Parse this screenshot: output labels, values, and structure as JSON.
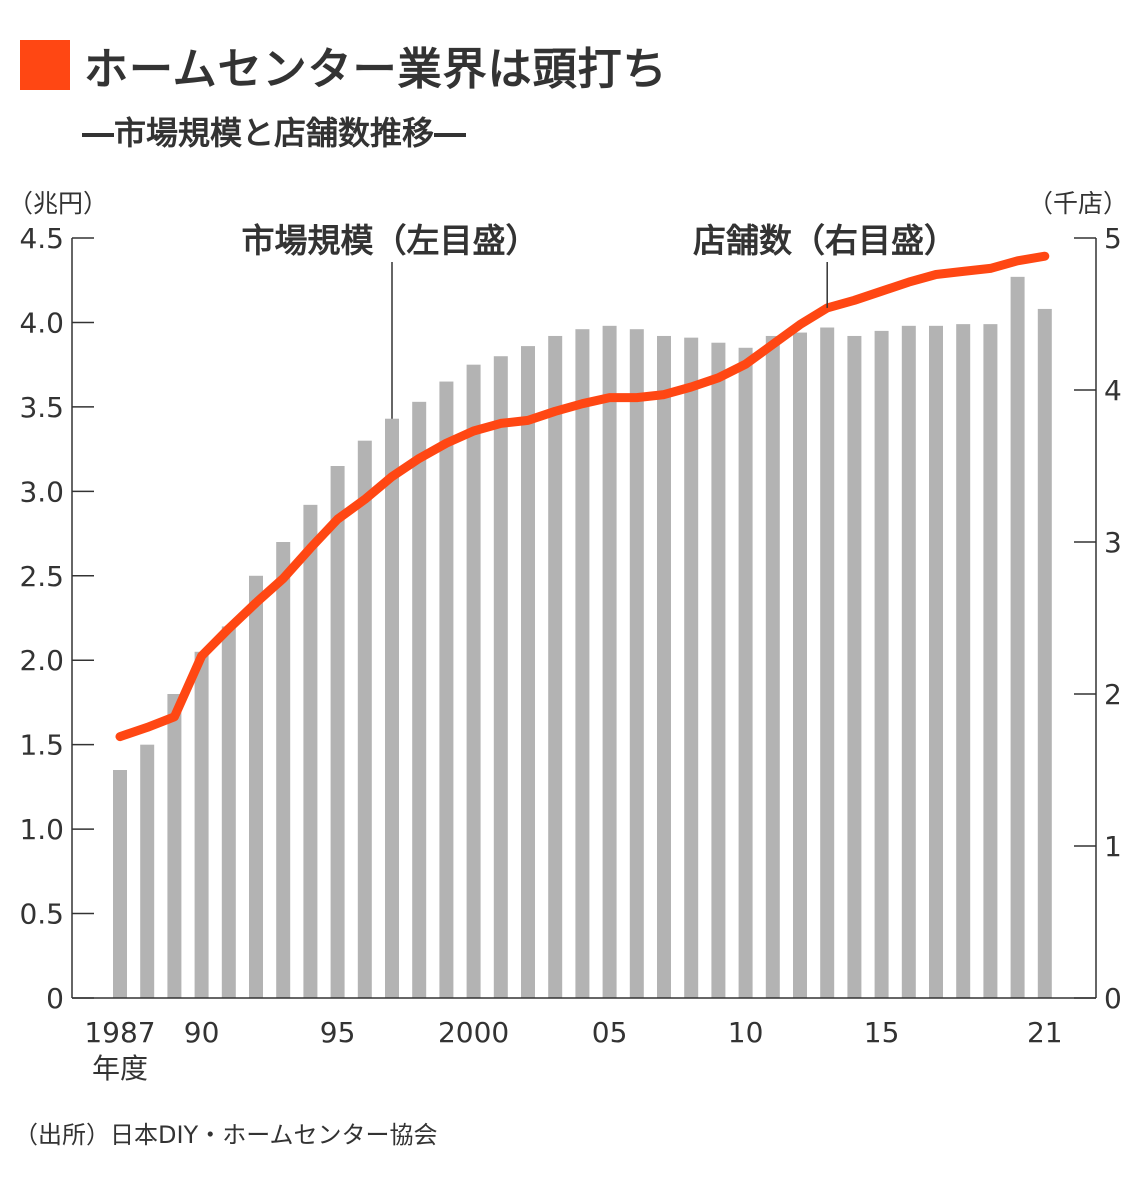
{
  "header": {
    "title": "ホームセンター業界は頭打ち",
    "subtitle": "―市場規模と店舗数推移―",
    "accent_color": "#ff4713"
  },
  "chart_data": {
    "type": "bar",
    "y_left_label": "（兆円）",
    "y_right_label": "（千店）",
    "y_left_ticks": [
      "0",
      "0.5",
      "1.0",
      "1.5",
      "2.0",
      "2.5",
      "3.0",
      "3.5",
      "4.0",
      "4.5"
    ],
    "y_right_ticks": [
      "0",
      "1",
      "2",
      "3",
      "4",
      "5"
    ],
    "ylim_left": [
      0,
      4.5
    ],
    "ylim_right": [
      0,
      5
    ],
    "x_tick_labels": [
      {
        "year": 1987,
        "label": "1987"
      },
      {
        "year": 1990,
        "label": "90"
      },
      {
        "year": 1995,
        "label": "95"
      },
      {
        "year": 2000,
        "label": "2000"
      },
      {
        "year": 2005,
        "label": "05"
      },
      {
        "year": 2010,
        "label": "10"
      },
      {
        "year": 2015,
        "label": "15"
      },
      {
        "year": 2021,
        "label": "21"
      }
    ],
    "x_unit_label": "年度",
    "categories": [
      1987,
      1988,
      1989,
      1990,
      1991,
      1992,
      1993,
      1994,
      1995,
      1996,
      1997,
      1998,
      1999,
      2000,
      2001,
      2002,
      2003,
      2004,
      2005,
      2006,
      2007,
      2008,
      2009,
      2010,
      2011,
      2012,
      2013,
      2014,
      2015,
      2016,
      2017,
      2018,
      2019,
      2020,
      2021
    ],
    "series": [
      {
        "name": "市場規模（左目盛）",
        "axis": "left",
        "type": "bar",
        "color": "#b3b3b3",
        "values": [
          1.35,
          1.5,
          1.8,
          2.05,
          2.2,
          2.5,
          2.7,
          2.92,
          3.15,
          3.3,
          3.43,
          3.53,
          3.65,
          3.75,
          3.8,
          3.86,
          3.92,
          3.96,
          3.98,
          3.96,
          3.92,
          3.91,
          3.88,
          3.85,
          3.92,
          3.94,
          3.97,
          3.92,
          3.95,
          3.98,
          3.98,
          3.99,
          3.99,
          4.27,
          4.08
        ]
      },
      {
        "name": "店舗数（右目盛）",
        "axis": "right",
        "type": "line",
        "color": "#ff4713",
        "values": [
          1.72,
          1.78,
          1.85,
          2.25,
          2.43,
          2.6,
          2.76,
          2.96,
          3.15,
          3.28,
          3.43,
          3.55,
          3.65,
          3.73,
          3.78,
          3.8,
          3.86,
          3.91,
          3.95,
          3.95,
          3.97,
          4.02,
          4.08,
          4.17,
          4.3,
          4.43,
          4.54,
          4.59,
          4.65,
          4.71,
          4.76,
          4.78,
          4.8,
          4.85,
          4.88
        ]
      }
    ],
    "annotations": [
      {
        "text": "市場規模（左目盛）",
        "year": 1997,
        "series": 0
      },
      {
        "text": "店舗数（右目盛）",
        "year": 2013,
        "series": 1
      }
    ]
  },
  "source": "（出所）日本DIY・ホームセンター協会"
}
